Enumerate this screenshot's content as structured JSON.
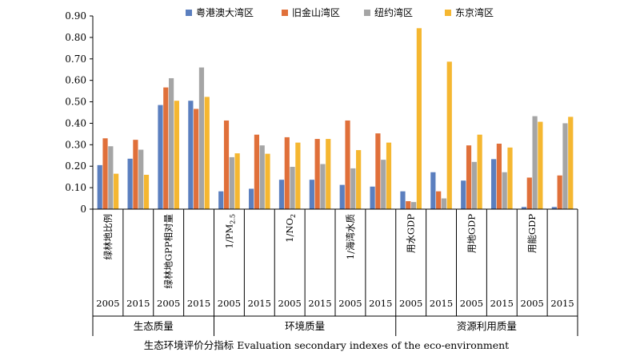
{
  "chart_data": {
    "type": "bar",
    "title": "",
    "ylim": [
      0,
      0.9
    ],
    "y_ticks": [
      "0",
      "0.10",
      "0.20",
      "0.30",
      "0.40",
      "0.50",
      "0.60",
      "0.70",
      "0.80",
      "0.90"
    ],
    "legend_position": "top",
    "xlabel": "生态环境评价分指标 Evaluation secondary indexes of the eco-environment",
    "categories": [
      "绿林地比例 2005",
      "绿林地比例 2015",
      "绿林地GPP相对量 2005",
      "绿林地GPP相对量 2015",
      "1/PM2.5 2005",
      "1/PM2.5 2015",
      "1/NO2 2005",
      "1/NO2 2015",
      "1/海湾水质 2005",
      "1/海湾水质 2015",
      "用水GDP 2005",
      "用水GDP 2015",
      "用地GDP 2005",
      "用地GDP 2015",
      "用能GDP 2005",
      "用能GDP 2015"
    ],
    "indicator_labels": [
      {
        "text": "绿林地比例"
      },
      {
        "text": "绿林地GPP相对量"
      },
      {
        "text": "1/PM",
        "sub": "2.5"
      },
      {
        "text": "1/NO",
        "sub": "2"
      },
      {
        "text": "1/海湾水质"
      },
      {
        "text": "用水GDP"
      },
      {
        "text": "用地GDP"
      },
      {
        "text": "用能GDP"
      }
    ],
    "years": [
      "2005",
      "2015"
    ],
    "groups": [
      {
        "name": "生态质量",
        "indicators": 2
      },
      {
        "name": "环境质量",
        "indicators": 3
      },
      {
        "name": "资源利用质量",
        "indicators": 3
      }
    ],
    "series": [
      {
        "name": "粤港澳大湾区",
        "color": "#5b7fbf",
        "values": [
          0.205,
          0.235,
          0.485,
          0.505,
          0.083,
          0.095,
          0.137,
          0.137,
          0.113,
          0.105,
          0.083,
          0.172,
          0.133,
          0.233,
          0.01,
          0.01
        ]
      },
      {
        "name": "旧金山湾区",
        "color": "#e0703a",
        "values": [
          0.33,
          0.323,
          0.567,
          0.467,
          0.413,
          0.347,
          0.335,
          0.327,
          0.413,
          0.353,
          0.037,
          0.083,
          0.297,
          0.305,
          0.147,
          0.157
        ]
      },
      {
        "name": "纽约湾区",
        "color": "#a5a5a5",
        "values": [
          0.293,
          0.277,
          0.61,
          0.66,
          0.242,
          0.297,
          0.197,
          0.21,
          0.19,
          0.23,
          0.033,
          0.05,
          0.22,
          0.172,
          0.433,
          0.4
        ]
      },
      {
        "name": "东京湾区",
        "color": "#f5b731",
        "values": [
          0.165,
          0.16,
          0.505,
          0.523,
          0.26,
          0.258,
          0.31,
          0.327,
          0.275,
          0.31,
          0.843,
          0.687,
          0.347,
          0.287,
          0.407,
          0.43
        ]
      }
    ]
  }
}
